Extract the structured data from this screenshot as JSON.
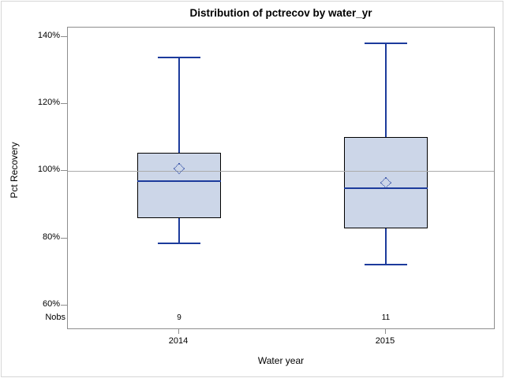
{
  "chart_data": {
    "type": "boxplot",
    "title": "Distribution of pctrecov by water_yr",
    "xlabel": "Water year",
    "ylabel": "Pct Recovery",
    "nobs_row_label": "Nobs",
    "y_ticks": [
      {
        "value": 140,
        "label": "140%"
      },
      {
        "value": 120,
        "label": "120%"
      },
      {
        "value": 100,
        "label": "100%"
      },
      {
        "value": 80,
        "label": "80%"
      },
      {
        "value": 60,
        "label": "60%"
      }
    ],
    "ylim": [
      55,
      143
    ],
    "reference_lines": [
      100
    ],
    "grid": "horizontal reference line at 100% only",
    "legend": "none",
    "categories": [
      "2014",
      "2015"
    ],
    "boxes": [
      {
        "category": "2014",
        "nobs": "9",
        "whisker_low": 78.5,
        "q1": 86,
        "median": 97,
        "mean": 100.7,
        "q3": 105.5,
        "whisker_high": 134
      },
      {
        "category": "2015",
        "nobs": "11",
        "whisker_low": 72.3,
        "q1": 83,
        "median": 95,
        "mean": 96.7,
        "q3": 110.3,
        "whisker_high": 138
      }
    ],
    "colors": {
      "box_fill": "#ccd6e8",
      "box_border": "#000000",
      "whisker_median_mean": "#1c3b9c",
      "reference_line": "#ababab",
      "frame": "#8e8e8e",
      "outer_border": "#d6d6d6"
    }
  }
}
